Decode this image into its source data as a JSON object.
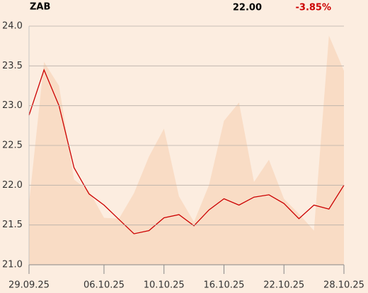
{
  "chart_data": {
    "type": "line",
    "title": "ZAB",
    "price": "22.00",
    "change": "-3.85%",
    "categories": [
      "29.09.25",
      null,
      null,
      null,
      null,
      "06.10.25",
      null,
      null,
      null,
      "10.10.25",
      null,
      null,
      null,
      "16.10.25",
      null,
      null,
      null,
      "22.10.25",
      null,
      null,
      null,
      "28.10.25"
    ],
    "series": [
      {
        "type": "area",
        "color": "#f9dcc5",
        "values": [
          21.77,
          23.55,
          23.25,
          22.07,
          21.93,
          21.59,
          21.58,
          21.9,
          22.36,
          22.71,
          21.86,
          21.54,
          22.0,
          22.81,
          23.04,
          22.04,
          22.32,
          21.83,
          21.64,
          21.43,
          23.88,
          23.44
        ]
      },
      {
        "type": "line",
        "color": "#cc0000",
        "values": [
          22.88,
          23.45,
          23.0,
          22.22,
          21.89,
          21.75,
          21.57,
          21.39,
          21.43,
          21.59,
          21.63,
          21.49,
          21.69,
          21.83,
          21.75,
          21.85,
          21.88,
          21.77,
          21.58,
          21.75,
          21.7,
          22.0
        ]
      }
    ],
    "ylim": [
      21,
      24
    ],
    "yticks": [
      {
        "value": 21,
        "label": "21.0"
      },
      21.5,
      {
        "value": 22,
        "label": "22.0"
      },
      22.5,
      {
        "value": 23,
        "label": "23.0"
      },
      23.5,
      {
        "value": 24,
        "label": "24.0"
      }
    ],
    "grid": true
  }
}
